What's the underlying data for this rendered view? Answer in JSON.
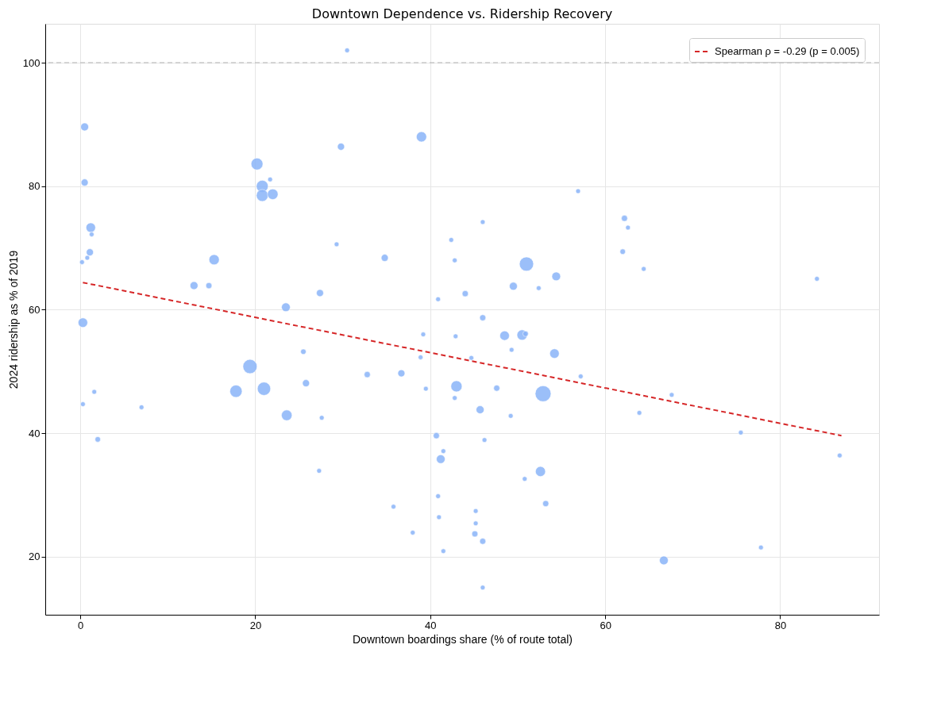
{
  "chart_data": {
    "type": "bubble",
    "title": "Downtown Dependence vs. Ridership Recovery",
    "xlabel": "Downtown boardings share (% of route total)",
    "ylabel": "2024 ridership as % of 2019",
    "xlim": [
      -4.0,
      91.3
    ],
    "ylim": [
      10.6,
      106.3
    ],
    "xticks": [
      0,
      20,
      40,
      60,
      80
    ],
    "yticks": [
      20,
      40,
      60,
      80,
      100
    ],
    "grid": true,
    "legend": "top right",
    "ref_lines": [
      {
        "axis": "y",
        "value": 100,
        "color": "#b0b0b0",
        "line_style": "dashed"
      }
    ],
    "series": [
      {
        "marker": "circle",
        "color": "#8ab4f8",
        "x": [
          30.5,
          0.5,
          39.0,
          29.8,
          20.2,
          21.7,
          0.5,
          20.8,
          20.8,
          22.0,
          56.9,
          1.2,
          1.3,
          62.2,
          46.0,
          62.6,
          42.4,
          29.3,
          1.1,
          62.0,
          0.8,
          0.2,
          15.3,
          34.8,
          42.8,
          51.0,
          64.4,
          84.2,
          54.4,
          49.5,
          52.4,
          13.0,
          14.7,
          27.4,
          44.0,
          40.9,
          23.5,
          46.0,
          0.3,
          48.5,
          50.5,
          50.9,
          39.2,
          42.9,
          25.5,
          54.2,
          38.9,
          44.7,
          49.3,
          19.4,
          32.8,
          36.7,
          57.2,
          25.8,
          17.8,
          21.0,
          43.0,
          47.6,
          52.9,
          39.5,
          1.6,
          67.6,
          42.8,
          0.3,
          7.0,
          45.7,
          63.9,
          23.6,
          27.6,
          49.2,
          2.0,
          40.7,
          46.2,
          75.5,
          41.5,
          41.2,
          86.8,
          27.3,
          52.6,
          50.8,
          40.9,
          53.2,
          35.8,
          45.2,
          41.0,
          45.2,
          38.0,
          45.1,
          46.0,
          77.8,
          41.5,
          66.7,
          46.0
        ],
        "values": [
          102.0,
          89.6,
          88.0,
          86.4,
          83.6,
          81.1,
          80.6,
          80.0,
          78.5,
          78.7,
          79.2,
          73.3,
          72.2,
          74.8,
          74.2,
          73.3,
          71.3,
          70.6,
          69.3,
          69.4,
          68.4,
          67.7,
          68.1,
          68.4,
          68.0,
          67.4,
          66.6,
          65.0,
          65.4,
          63.8,
          63.5,
          63.9,
          63.9,
          62.7,
          62.6,
          61.7,
          60.4,
          58.7,
          57.9,
          55.8,
          55.9,
          56.1,
          56.0,
          55.7,
          53.2,
          52.9,
          52.3,
          52.2,
          53.5,
          50.8,
          49.5,
          49.7,
          49.2,
          48.1,
          46.8,
          47.2,
          47.6,
          47.3,
          46.4,
          47.2,
          46.7,
          46.2,
          45.7,
          44.7,
          44.2,
          43.8,
          43.3,
          42.9,
          42.5,
          42.8,
          39.0,
          39.6,
          38.9,
          40.1,
          37.1,
          35.8,
          36.4,
          33.9,
          33.8,
          32.6,
          29.8,
          28.6,
          28.1,
          27.4,
          26.4,
          25.4,
          23.9,
          23.7,
          22.5,
          21.5,
          20.9,
          19.4,
          15.0
        ],
        "sizes": [
          0.09,
          0.25,
          0.42,
          0.2,
          0.56,
          0.09,
          0.2,
          0.56,
          0.56,
          0.45,
          0.09,
          0.36,
          0.09,
          0.15,
          0.09,
          0.09,
          0.09,
          0.09,
          0.2,
          0.12,
          0.09,
          0.09,
          0.42,
          0.2,
          0.09,
          0.8,
          0.09,
          0.09,
          0.3,
          0.25,
          0.09,
          0.25,
          0.15,
          0.2,
          0.15,
          0.09,
          0.3,
          0.15,
          0.36,
          0.36,
          0.42,
          0.12,
          0.09,
          0.09,
          0.12,
          0.36,
          0.09,
          0.09,
          0.09,
          0.8,
          0.15,
          0.2,
          0.09,
          0.2,
          0.6,
          0.7,
          0.5,
          0.15,
          1.0,
          0.09,
          0.09,
          0.09,
          0.09,
          0.09,
          0.09,
          0.25,
          0.09,
          0.45,
          0.09,
          0.09,
          0.12,
          0.15,
          0.09,
          0.09,
          0.09,
          0.3,
          0.09,
          0.09,
          0.4,
          0.09,
          0.09,
          0.15,
          0.09,
          0.09,
          0.09,
          0.09,
          0.09,
          0.15,
          0.15,
          0.09,
          0.09,
          0.3,
          0.09
        ]
      },
      {
        "type": "line",
        "name": "Spearman ρ = -0.29 (p = 0.005)",
        "color": "#d62728",
        "line_style": "dashed",
        "marker": "none",
        "x": [
          0.3,
          87.0
        ],
        "values": [
          64.4,
          39.6
        ]
      }
    ]
  }
}
